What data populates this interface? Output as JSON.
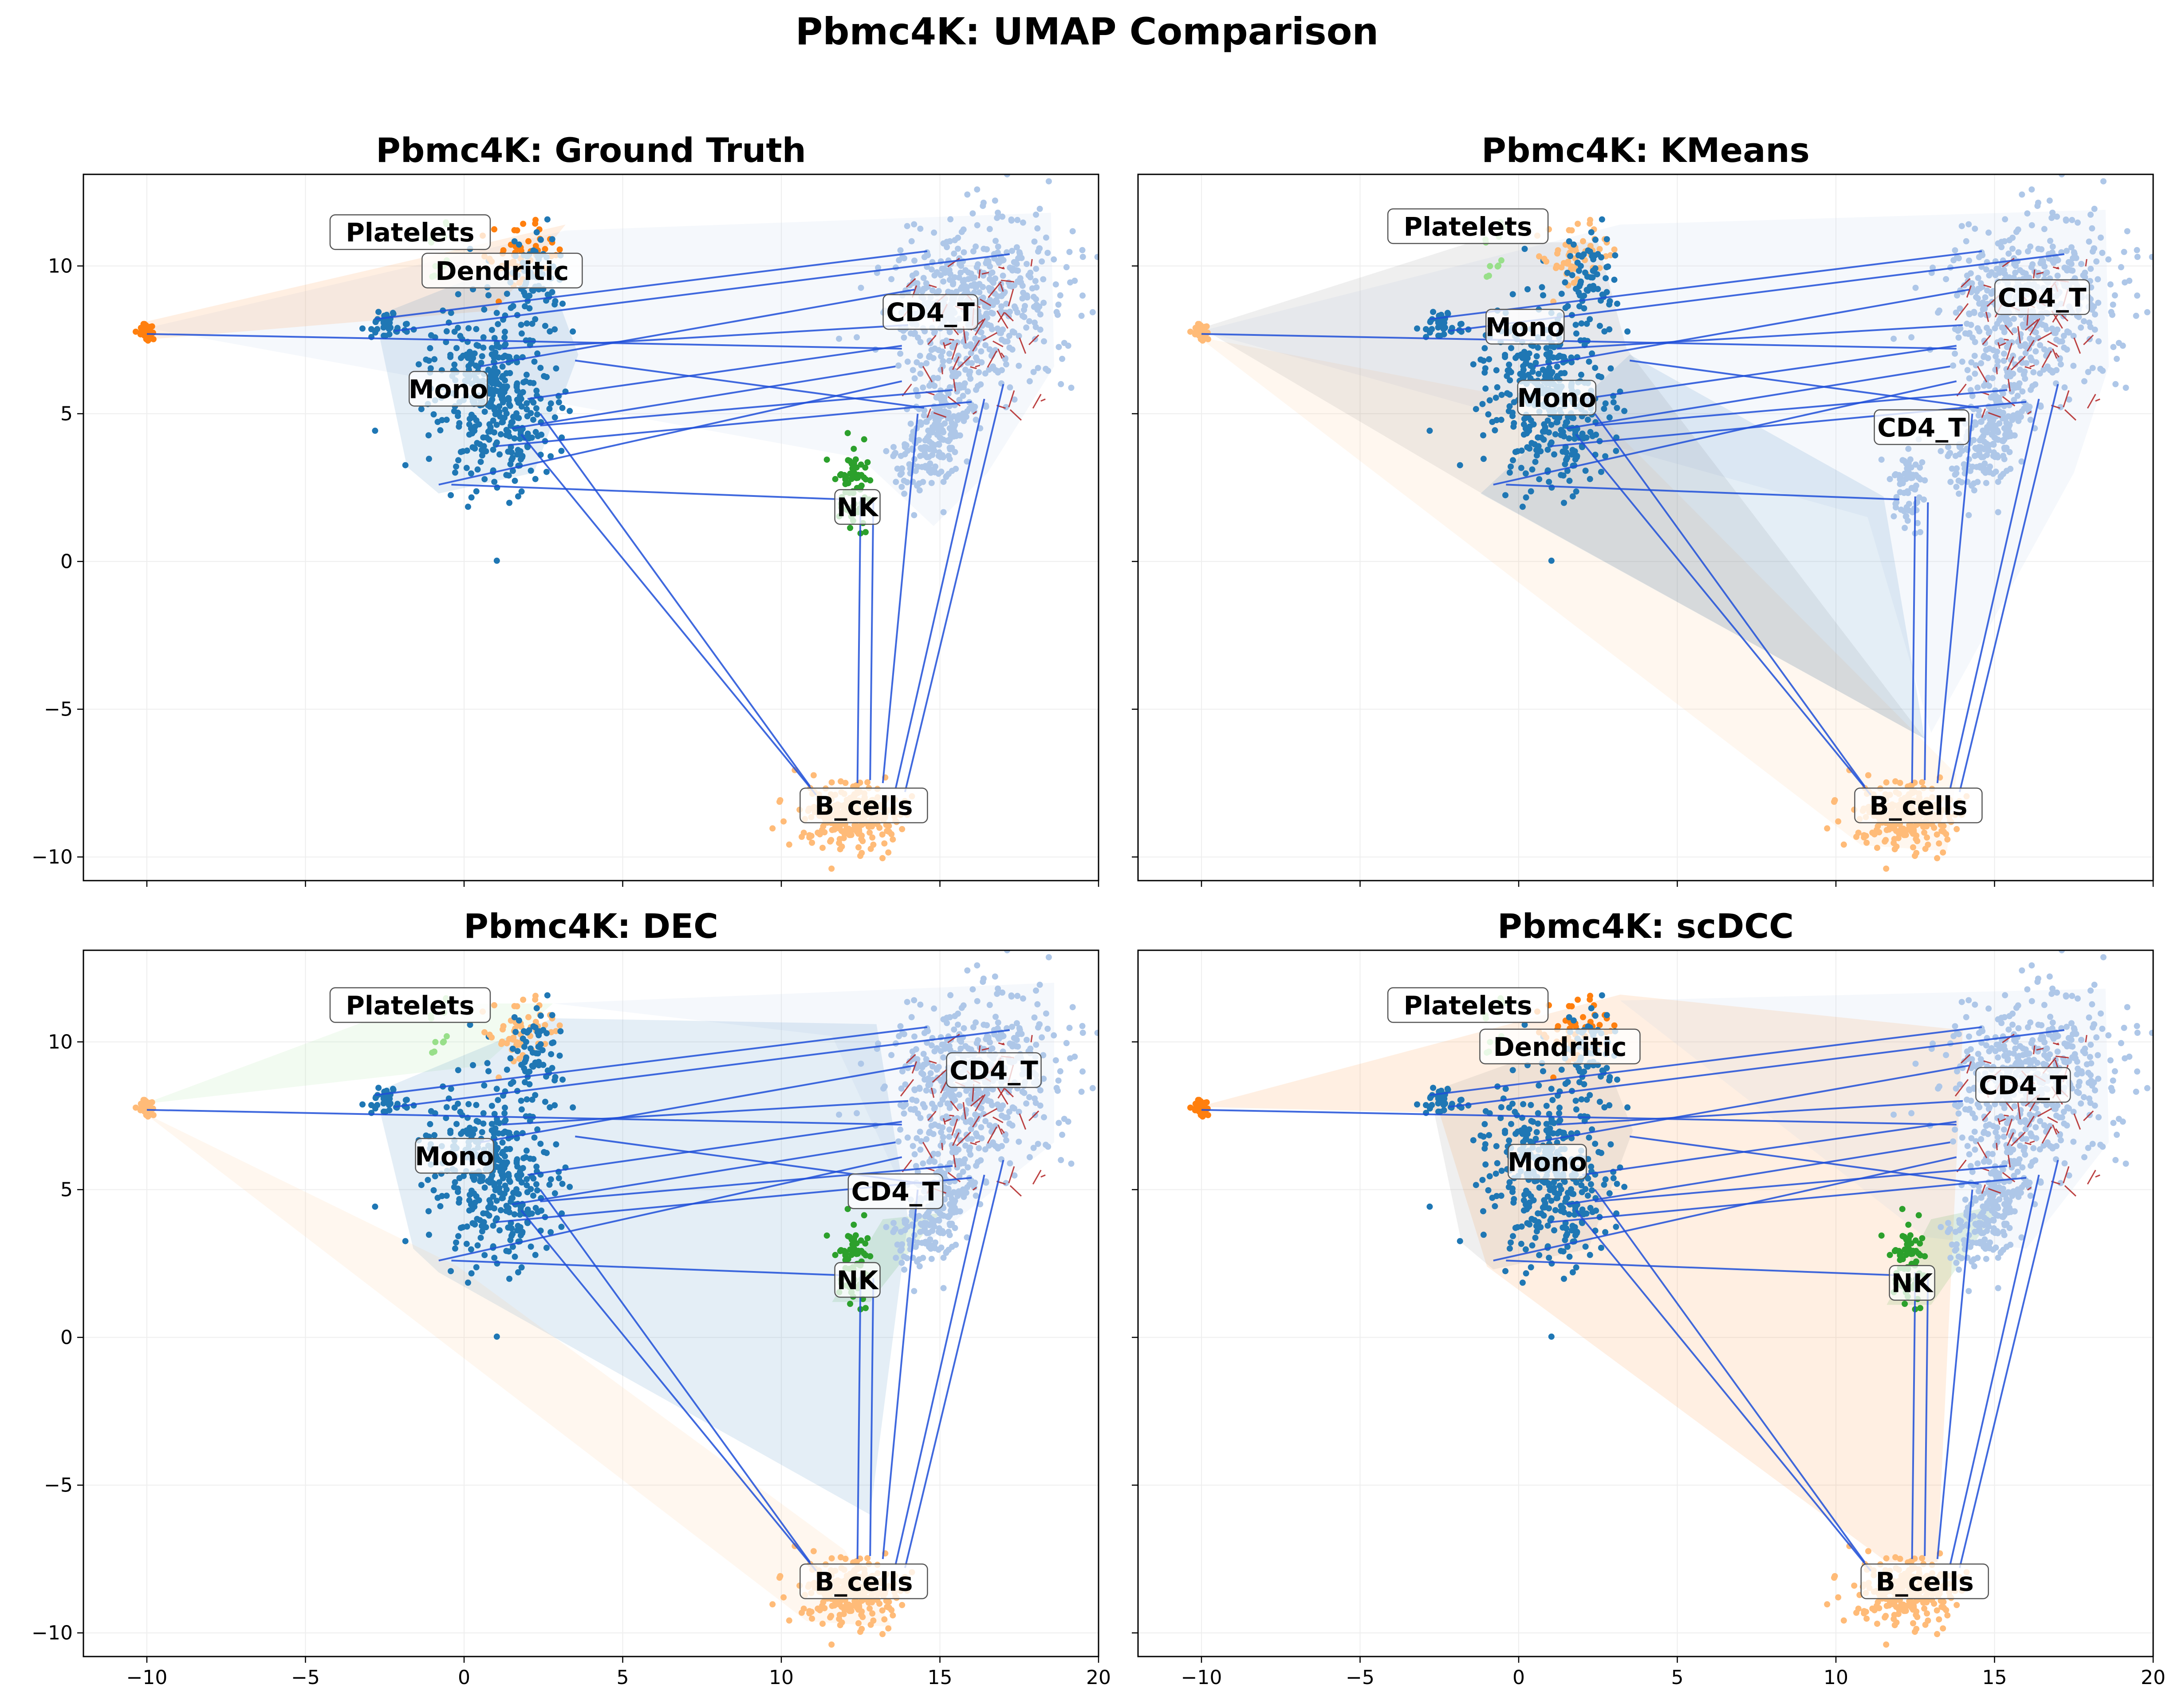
{
  "figure": {
    "suptitle": "Pbmc4K: UMAP Comparison"
  },
  "colors": {
    "Mono": "#1f77b4",
    "Dendritic": "#ff7f0e",
    "CD4_T": "#aec7e8",
    "B_cells": "#ffbb78",
    "NK": "#2ca02c",
    "Platelets": "#98df8a",
    "edge_blue": "#1f4fd8",
    "edge_red": "#b22222",
    "grid": "#eeeeee"
  },
  "chart_data": [
    {
      "type": "scatter",
      "title": "Pbmc4K: Ground Truth",
      "xlim": [
        -12,
        20
      ],
      "ylim": [
        -10.8,
        13.1
      ],
      "xticks": [
        -10,
        -5,
        0,
        5,
        10,
        15,
        20
      ],
      "yticks": [
        -10,
        -5,
        0,
        5,
        10
      ],
      "show_xticklabels": false,
      "show_yticklabels": true,
      "grid": true,
      "clusters": [
        {
          "name": "Mono",
          "color": "#1f77b4",
          "label_xy": [
            -0.5,
            5.8
          ],
          "hull_color": "#1f77b4"
        },
        {
          "name": "CD4_T",
          "color": "#aec7e8",
          "label_xy": [
            14.7,
            8.4
          ],
          "hull_color": "#aec7e8"
        },
        {
          "name": "B_cells",
          "color": "#ffbb78",
          "label_xy": [
            12.6,
            -8.3
          ],
          "hull_color": null
        },
        {
          "name": "NK",
          "color": "#2ca02c",
          "label_xy": [
            12.4,
            1.8
          ],
          "hull_color": null
        },
        {
          "name": "Dendritic",
          "color": "#ff7f0e",
          "label_xy": [
            1.2,
            9.8
          ],
          "hull_color": "#ff7f0e"
        },
        {
          "name": "Platelets",
          "color": "#98df8a",
          "label_xy": [
            -1.7,
            11.1
          ],
          "hull_color": null
        }
      ]
    },
    {
      "type": "scatter",
      "title": "Pbmc4K: KMeans",
      "xlim": [
        -12,
        20
      ],
      "ylim": [
        -10.8,
        13.1
      ],
      "xticks": [
        -10,
        -5,
        0,
        5,
        10,
        15,
        20
      ],
      "yticks": [
        -10,
        -5,
        0,
        5,
        10
      ],
      "show_xticklabels": false,
      "show_yticklabels": false,
      "grid": true,
      "clusters": [
        {
          "name": "Platelets",
          "color": "#98df8a",
          "label_xy": [
            -1.6,
            11.3
          ],
          "hull_color": null
        },
        {
          "name": "Mono",
          "color": "#1f77b4",
          "label_xy": [
            0.2,
            7.9
          ],
          "hull_color": "#7f7f7f"
        },
        {
          "name": "Mono",
          "color": "#1f77b4",
          "label_xy": [
            1.2,
            5.5
          ],
          "hull_color": "#1f77b4"
        },
        {
          "name": "CD4_T",
          "color": "#aec7e8",
          "label_xy": [
            16.5,
            8.9
          ],
          "hull_color": "#aec7e8"
        },
        {
          "name": "CD4_T",
          "color": "#aec7e8",
          "label_xy": [
            12.7,
            4.5
          ],
          "hull_color": "#aec7e8"
        },
        {
          "name": "B_cells",
          "color": "#ffbb78",
          "label_xy": [
            12.6,
            -8.3
          ],
          "hull_color": "#ffbb78"
        }
      ]
    },
    {
      "type": "scatter",
      "title": "Pbmc4K: DEC",
      "xlim": [
        -12,
        20
      ],
      "ylim": [
        -10.8,
        13.1
      ],
      "xticks": [
        -10,
        -5,
        0,
        5,
        10,
        15,
        20
      ],
      "yticks": [
        -10,
        -5,
        0,
        5,
        10
      ],
      "show_xticklabels": true,
      "show_yticklabels": true,
      "grid": true,
      "clusters": [
        {
          "name": "Platelets",
          "color": "#98df8a",
          "label_xy": [
            -1.7,
            11.2
          ],
          "hull_color": "#98df8a"
        },
        {
          "name": "CD4_T",
          "color": "#aec7e8",
          "label_xy": [
            16.7,
            9.0
          ],
          "hull_color": "#aec7e8"
        },
        {
          "name": "Mono",
          "color": "#1f77b4",
          "label_xy": [
            -0.3,
            6.1
          ],
          "hull_color": "#1f77b4"
        },
        {
          "name": "CD4_T",
          "color": "#aec7e8",
          "label_xy": [
            13.6,
            4.9
          ],
          "hull_color": "#aec7e8"
        },
        {
          "name": "NK",
          "color": "#2ca02c",
          "label_xy": [
            12.4,
            1.9
          ],
          "hull_color": "#2ca02c"
        },
        {
          "name": "B_cells",
          "color": "#ffbb78",
          "label_xy": [
            12.6,
            -8.3
          ],
          "hull_color": "#ffbb78"
        }
      ]
    },
    {
      "type": "scatter",
      "title": "Pbmc4K: scDCC",
      "xlim": [
        -12,
        20
      ],
      "ylim": [
        -10.8,
        13.1
      ],
      "xticks": [
        -10,
        -5,
        0,
        5,
        10,
        15,
        20
      ],
      "yticks": [
        -10,
        -5,
        0,
        5,
        10
      ],
      "show_xticklabels": true,
      "show_yticklabels": false,
      "grid": true,
      "clusters": [
        {
          "name": "Platelets",
          "color": "#98df8a",
          "label_xy": [
            -1.6,
            11.2
          ],
          "hull_color": null
        },
        {
          "name": "Dendritic",
          "color": "#ff7f0e",
          "label_xy": [
            1.3,
            9.8
          ],
          "hull_color": "#ff7f0e"
        },
        {
          "name": "CD4_T",
          "color": "#aec7e8",
          "label_xy": [
            15.9,
            8.5
          ],
          "hull_color": "#aec7e8"
        },
        {
          "name": "Mono",
          "color": "#1f77b4",
          "label_xy": [
            0.9,
            5.9
          ],
          "hull_color": "#7f7f7f"
        },
        {
          "name": "NK",
          "color": "#2ca02c",
          "label_xy": [
            12.4,
            1.8
          ],
          "hull_color": "#2ca02c"
        },
        {
          "name": "B_cells",
          "color": "#ffbb78",
          "label_xy": [
            12.8,
            -8.3
          ],
          "hull_color": "#ffbb78"
        }
      ]
    }
  ]
}
